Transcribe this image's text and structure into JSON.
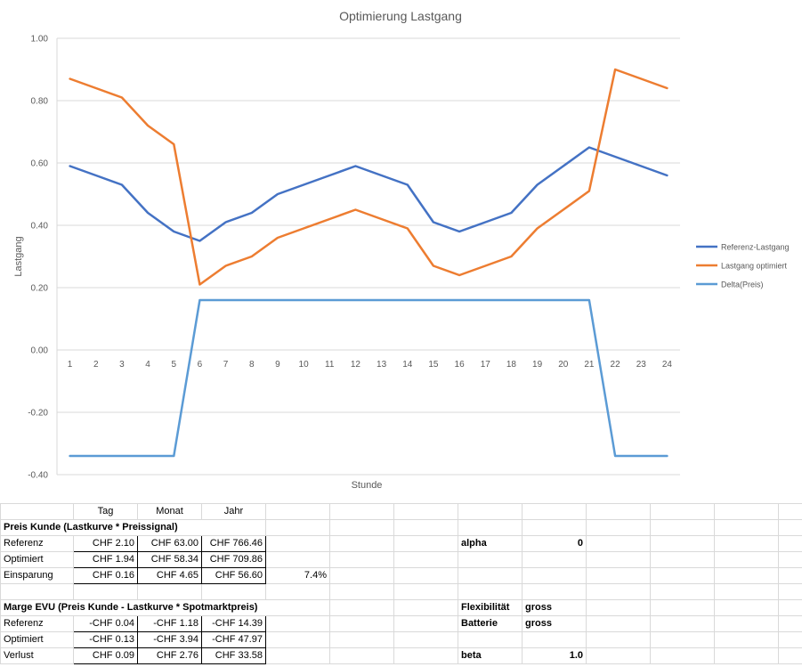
{
  "chart_data": {
    "type": "line",
    "title": "Optimierung Lastgang",
    "xlabel": "Stunde",
    "ylabel": "Lastgang",
    "x": [
      1,
      2,
      3,
      4,
      5,
      6,
      7,
      8,
      9,
      10,
      11,
      12,
      13,
      14,
      15,
      16,
      17,
      18,
      19,
      20,
      21,
      22,
      23,
      24
    ],
    "ylim": [
      -0.4,
      1.0
    ],
    "yticks": [
      "-0.40",
      "-0.20",
      "0.00",
      "0.20",
      "0.40",
      "0.60",
      "0.80",
      "1.00"
    ],
    "grid": true,
    "legend": "right",
    "series": [
      {
        "name": "Referenz-Lastgang",
        "color": "#4472c4",
        "values": [
          0.59,
          0.56,
          0.53,
          0.44,
          0.38,
          0.35,
          0.41,
          0.44,
          0.5,
          0.53,
          0.56,
          0.59,
          0.56,
          0.53,
          0.41,
          0.38,
          0.41,
          0.44,
          0.53,
          0.59,
          0.65,
          0.62,
          0.59,
          0.56
        ]
      },
      {
        "name": "Lastgang optimiert",
        "color": "#ed7d31",
        "values": [
          0.87,
          0.84,
          0.81,
          0.72,
          0.66,
          0.21,
          0.27,
          0.3,
          0.36,
          0.39,
          0.42,
          0.45,
          0.42,
          0.39,
          0.27,
          0.24,
          0.27,
          0.3,
          0.39,
          0.45,
          0.51,
          0.9,
          0.87,
          0.84
        ]
      },
      {
        "name": "Delta(Preis)",
        "color": "#5b9bd5",
        "values": [
          -0.34,
          -0.34,
          -0.34,
          -0.34,
          -0.34,
          0.16,
          0.16,
          0.16,
          0.16,
          0.16,
          0.16,
          0.16,
          0.16,
          0.16,
          0.16,
          0.16,
          0.16,
          0.16,
          0.16,
          0.16,
          0.16,
          -0.34,
          -0.34,
          -0.34
        ]
      }
    ]
  },
  "sheet": {
    "headers": {
      "tag": "Tag",
      "monat": "Monat",
      "jahr": "Jahr"
    },
    "preis_title": "Preis Kunde (Lastkurve * Preissignal)",
    "referenz": {
      "label": "Referenz",
      "tag": "CHF 2.10",
      "monat": "CHF 63.00",
      "jahr": "CHF 766.46"
    },
    "optimiert": {
      "label": "Optimiert",
      "tag": "CHF 1.94",
      "monat": "CHF 58.34",
      "jahr": "CHF 709.86"
    },
    "einsparung": {
      "label": "Einsparung",
      "tag": "CHF 0.16",
      "monat": "CHF 4.65",
      "jahr": "CHF 56.60",
      "pct": "7.4%"
    },
    "marge_title": "Marge EVU (Preis Kunde - Lastkurve * Spotmarktpreis)",
    "m_referenz": {
      "label": "Referenz",
      "tag": "-CHF 0.04",
      "monat": "-CHF 1.18",
      "jahr": "-CHF 14.39"
    },
    "m_optimiert": {
      "label": "Optimiert",
      "tag": "-CHF 0.13",
      "monat": "-CHF 3.94",
      "jahr": "-CHF 47.97"
    },
    "verlust": {
      "label": "Verlust",
      "tag": "CHF 0.09",
      "monat": "CHF 2.76",
      "jahr": "CHF 33.58"
    },
    "alpha": {
      "label": "alpha",
      "value": "0"
    },
    "flexibilitaet": {
      "label": "Flexibilität",
      "value": "gross"
    },
    "batterie": {
      "label": "Batterie",
      "value": "gross"
    },
    "beta": {
      "label": "beta",
      "value": "1.0"
    }
  }
}
